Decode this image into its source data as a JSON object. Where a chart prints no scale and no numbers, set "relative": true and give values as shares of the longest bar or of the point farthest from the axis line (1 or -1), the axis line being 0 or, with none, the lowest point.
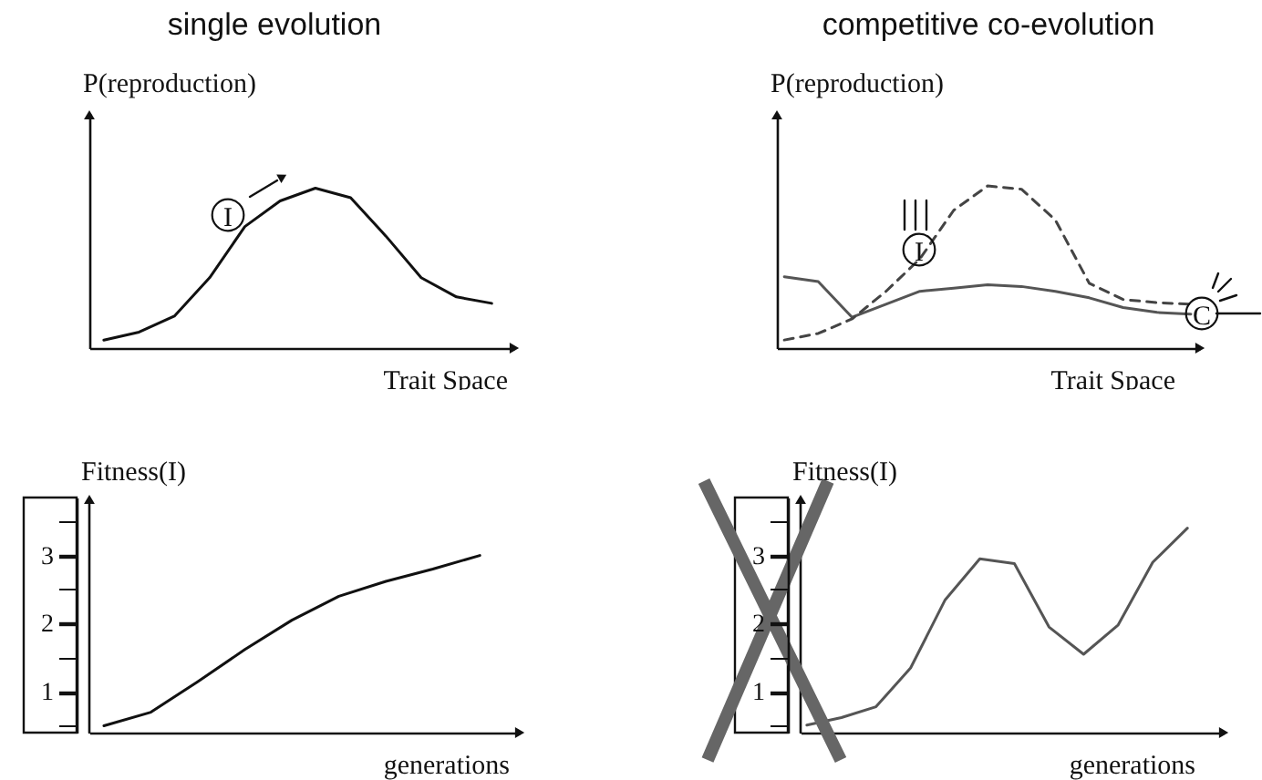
{
  "chart_data": [
    {
      "type": "line",
      "title": "single evolution",
      "xlabel": "Trait Space",
      "ylabel": "P(reproduction)",
      "relative": true,
      "annotations": [
        "I"
      ],
      "categories": [
        null,
        null,
        null,
        null,
        null,
        null,
        null,
        null,
        null,
        null,
        null,
        null
      ],
      "series": [
        {
          "color": "#111111",
          "values": [
            0.05,
            0.1,
            0.2,
            0.44,
            0.76,
            0.92,
            1.0,
            0.94,
            0.7,
            0.44,
            0.32,
            0.28
          ]
        }
      ]
    },
    {
      "type": "line",
      "title": "competitive co-evolution",
      "xlabel": "Trait Space",
      "ylabel": "P(reproduction)",
      "relative": true,
      "annotations": [
        "I",
        "C"
      ],
      "categories": [
        null,
        null,
        null,
        null,
        null,
        null,
        null,
        null,
        null,
        null,
        null,
        null,
        null
      ],
      "series": [
        {
          "color": "#555555",
          "values": [
            0.44,
            0.41,
            0.19,
            0.27,
            0.35,
            0.37,
            0.39,
            0.38,
            0.35,
            0.31,
            0.25,
            0.22,
            0.21
          ]
        },
        {
          "color": "#444444",
          "line_style": "dashed",
          "values": [
            0.05,
            0.09,
            0.18,
            0.35,
            0.55,
            0.85,
            1.0,
            0.98,
            0.79,
            0.4,
            0.3,
            0.28,
            0.27
          ]
        }
      ]
    },
    {
      "type": "line",
      "xlabel": "generations",
      "ylabel": "Fitness(I)",
      "ylim": [
        0.4,
        3.85
      ],
      "yticks": [
        {
          "value": 0.5,
          "label": null
        },
        1,
        {
          "value": 1.5,
          "label": null
        },
        2,
        {
          "value": 2.5,
          "label": null
        },
        3,
        {
          "value": 3.5,
          "label": null
        }
      ],
      "categories": [
        null,
        null,
        null,
        null,
        null,
        null,
        null,
        null,
        null
      ],
      "series": [
        {
          "color": "#111111",
          "values": [
            0.5,
            0.7,
            1.15,
            1.62,
            2.05,
            2.4,
            2.62,
            2.8,
            3.0
          ]
        }
      ]
    },
    {
      "type": "line",
      "xlabel": "generations",
      "ylabel": "Fitness(I)",
      "ylim": [
        0.4,
        3.85
      ],
      "yticks": [
        {
          "value": 0.5,
          "label": null
        },
        1,
        {
          "value": 1.5,
          "label": null
        },
        2,
        {
          "value": 2.5,
          "label": null
        },
        3,
        {
          "value": 3.5,
          "label": null
        }
      ],
      "categories": [
        null,
        null,
        null,
        null,
        null,
        null,
        null,
        null,
        null,
        null,
        null,
        null
      ],
      "series": [
        {
          "color": "#555555",
          "values": [
            0.51,
            0.62,
            0.78,
            1.35,
            2.35,
            2.95,
            2.88,
            1.95,
            1.55,
            1.98,
            2.9,
            3.4
          ]
        }
      ]
    }
  ]
}
